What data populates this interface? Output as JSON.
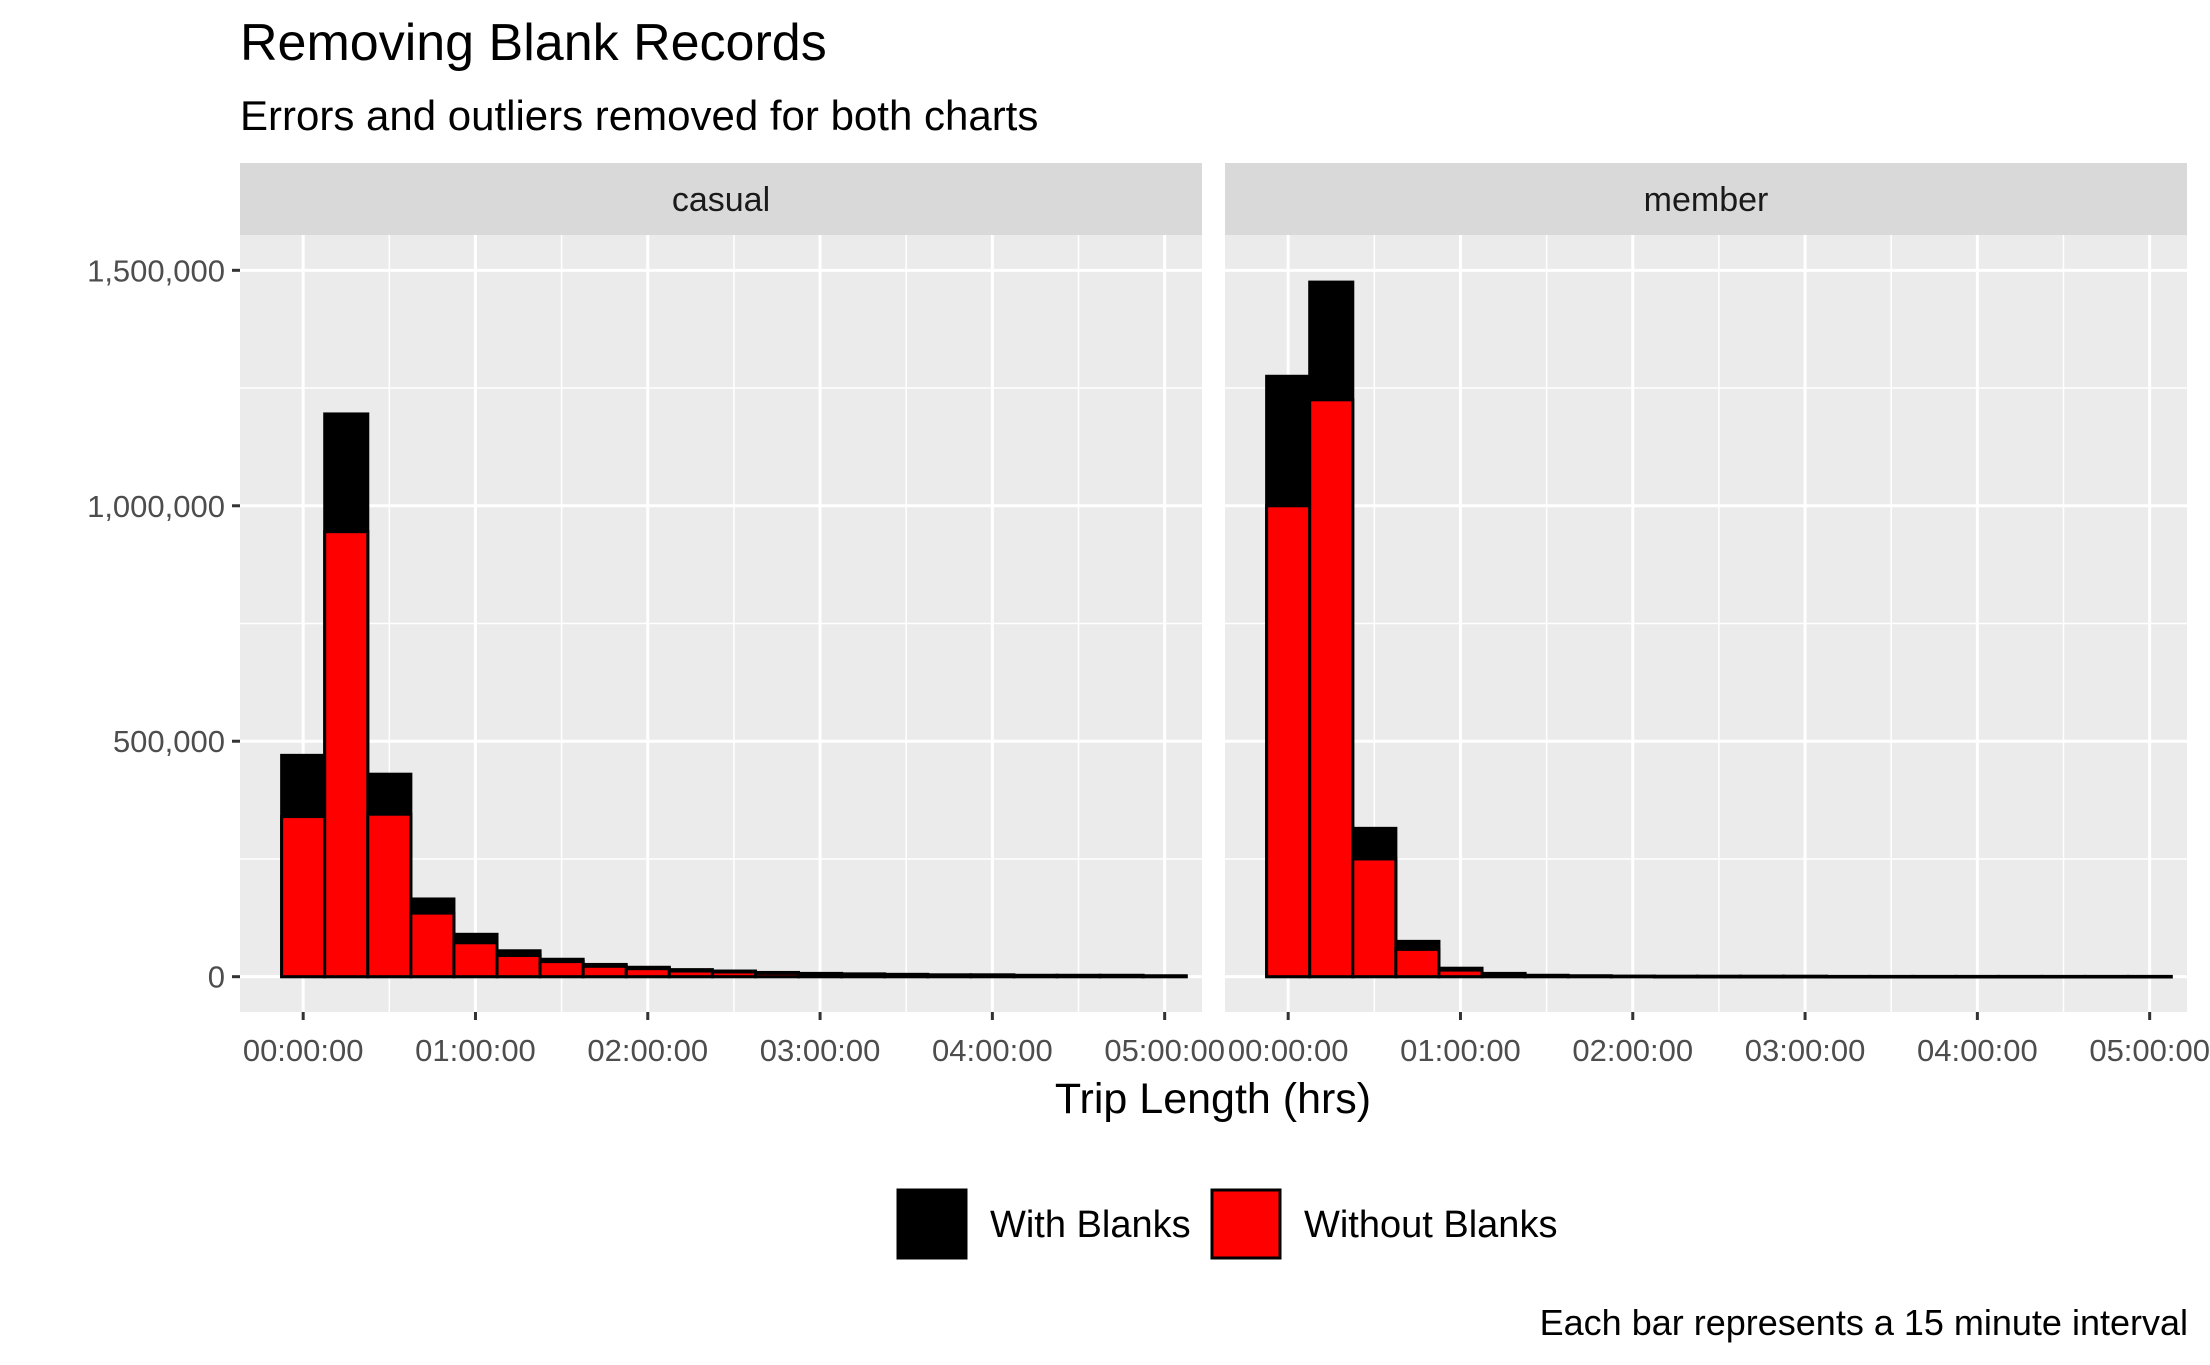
{
  "chart_data": {
    "type": "bar",
    "title": "Removing Blank Records",
    "subtitle": "Errors and outliers removed for both charts",
    "xlabel": "Trip Length (hrs)",
    "ylabel": "",
    "caption": "Each bar represents a 15 minute interval",
    "bin_width_minutes": 15,
    "bin_starts_minutes": [
      -7.5,
      7.5,
      22.5,
      37.5,
      52.5,
      67.5,
      82.5,
      97.5,
      112.5,
      127.5,
      142.5,
      157.5,
      172.5,
      187.5,
      202.5,
      217.5,
      232.5,
      247.5,
      262.5,
      277.5,
      292.5
    ],
    "x_ticks": [
      "00:00:00",
      "01:00:00",
      "02:00:00",
      "03:00:00",
      "04:00:00",
      "05:00:00"
    ],
    "x_tick_minutes": [
      0,
      60,
      120,
      180,
      240,
      300
    ],
    "xlim_minutes": [
      -22,
      313
    ],
    "y_ticks": [
      0,
      500000,
      1000000,
      1500000
    ],
    "y_tick_labels": [
      "0",
      "500,000",
      "1,000,000",
      "1,500,000"
    ],
    "ylim": [
      -75000,
      1575000
    ],
    "legend": {
      "position": "bottom",
      "entries": [
        {
          "label": "With Blanks",
          "color": "#000000"
        },
        {
          "label": "Without Blanks",
          "color": "#ff0000"
        }
      ]
    },
    "panels": [
      {
        "name": "casual",
        "series": [
          {
            "name": "With Blanks",
            "color": "#000000",
            "values": [
              470000,
              1195000,
              430000,
              165000,
              90000,
              55000,
              37000,
              26000,
              20000,
              15000,
              12000,
              9000,
              7000,
              6000,
              5000,
              4000,
              4000,
              3000,
              3000,
              3000,
              2000
            ]
          },
          {
            "name": "Without Blanks",
            "color": "#ff0000",
            "values": [
              340000,
              945000,
              345000,
              135000,
              72000,
              45000,
              32000,
              22000,
              17000,
              12000,
              10000,
              7000,
              5000,
              5000,
              4000,
              3000,
              3000,
              2000,
              2000,
              2000,
              1000
            ]
          }
        ]
      },
      {
        "name": "member",
        "series": [
          {
            "name": "With Blanks",
            "color": "#000000",
            "values": [
              1275000,
              1475000,
              315000,
              75000,
              18000,
              7000,
              3000,
              2000,
              1000,
              1000,
              1000,
              1000,
              1000,
              500,
              500,
              500,
              500,
              500,
              500,
              500,
              500
            ]
          },
          {
            "name": "Without Blanks",
            "color": "#ff0000",
            "values": [
              1000000,
              1225000,
              250000,
              58000,
              14000,
              5000,
              2000,
              1000,
              1000,
              500,
              500,
              500,
              500,
              500,
              500,
              500,
              500,
              500,
              500,
              500,
              500
            ]
          }
        ]
      }
    ],
    "colors": {
      "panel_background": "#ebebeb",
      "strip_background": "#d9d9d9",
      "grid": "#ffffff"
    }
  }
}
